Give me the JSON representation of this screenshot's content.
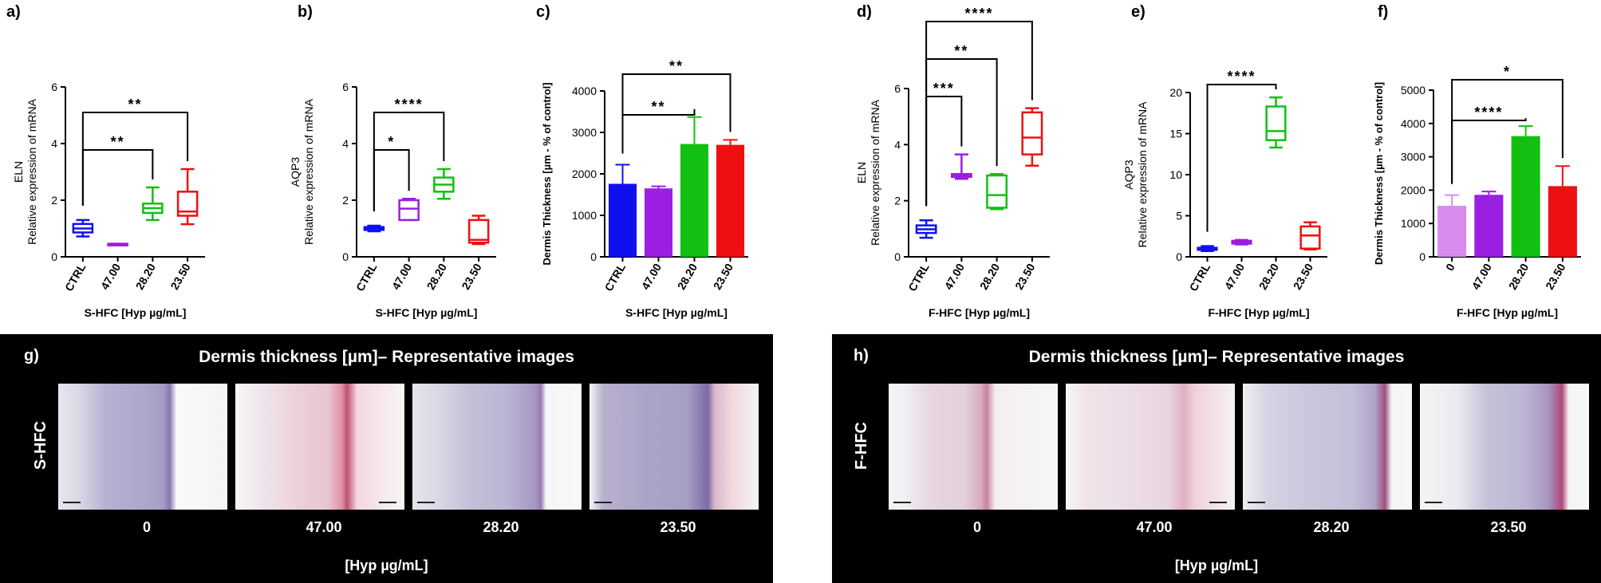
{
  "charts": [
    {
      "label": "a)",
      "type": "box",
      "ylabel_top": "ELN",
      "ylabel": "Relative expression of mRNA",
      "xlabel": "S-HFC [Hyp µg/mL]",
      "categories": [
        "CTRL",
        "47.00",
        "28.20",
        "23.50"
      ],
      "colors": [
        "#1010ee",
        "#9b1fe0",
        "#12c012",
        "#ee1010"
      ],
      "yticks": [
        "0",
        "2",
        "4",
        "6"
      ],
      "ylim": [
        0,
        6
      ],
      "boxes": [
        {
          "min": 0.72,
          "q1": 0.86,
          "med": 1.0,
          "q3": 1.16,
          "max": 1.3
        },
        {
          "min": 0.42,
          "q1": 0.42,
          "med": 0.44,
          "q3": 0.46,
          "max": 0.46
        },
        {
          "min": 1.3,
          "q1": 1.55,
          "med": 1.72,
          "q3": 1.88,
          "max": 2.45
        },
        {
          "min": 1.15,
          "q1": 1.45,
          "med": 1.6,
          "q3": 2.3,
          "max": 3.1
        }
      ],
      "sig": [
        {
          "from": 0,
          "to": 2,
          "level": 0,
          "stars": "**"
        },
        {
          "from": 0,
          "to": 3,
          "level": 1,
          "stars": "**"
        }
      ]
    },
    {
      "label": "b)",
      "type": "box",
      "ylabel_top": "AQP3",
      "ylabel": "Relative expression of mRNA",
      "xlabel": "S-HFC [Hyp µg/mL]",
      "categories": [
        "CTRL",
        "47.00",
        "28.20",
        "23.50"
      ],
      "colors": [
        "#1010ee",
        "#9b1fe0",
        "#12c012",
        "#ee1010"
      ],
      "yticks": [
        "0",
        "2",
        "4",
        "6"
      ],
      "ylim": [
        0,
        6
      ],
      "boxes": [
        {
          "min": 0.9,
          "q1": 0.95,
          "med": 1.0,
          "q3": 1.05,
          "max": 1.1
        },
        {
          "min": 1.3,
          "q1": 1.3,
          "med": 1.7,
          "q3": 2.0,
          "max": 2.05
        },
        {
          "min": 2.05,
          "q1": 2.3,
          "med": 2.55,
          "q3": 2.8,
          "max": 3.1
        },
        {
          "min": 0.45,
          "q1": 0.5,
          "med": 0.6,
          "q3": 1.3,
          "max": 1.45
        }
      ],
      "sig": [
        {
          "from": 0,
          "to": 1,
          "level": 0,
          "stars": "*"
        },
        {
          "from": 0,
          "to": 2,
          "level": 1,
          "stars": "****"
        }
      ]
    },
    {
      "label": "c)",
      "type": "bar",
      "ylabel": "Dermis Thickness [µm - % of control]",
      "xlabel": "S-HFC [Hyp µg/mL]",
      "categories": [
        "CTRL",
        "47.00",
        "28.20",
        "23.50"
      ],
      "colors": [
        "#1010ee",
        "#9b1fe0",
        "#12c012",
        "#ee1010"
      ],
      "yticks": [
        "0",
        "1000",
        "2000",
        "3000",
        "4000"
      ],
      "ylim": [
        0,
        4000
      ],
      "values": [
        1760,
        1650,
        2720,
        2700
      ],
      "errors": [
        460,
        50,
        650,
        120
      ],
      "sig": [
        {
          "from": 0,
          "to": 2,
          "level": 0,
          "stars": "**"
        },
        {
          "from": 0,
          "to": 3,
          "level": 1,
          "stars": "**"
        }
      ]
    },
    {
      "label": "d)",
      "type": "box",
      "ylabel_top": "ELN",
      "ylabel": "Relative expression of mRNA",
      "xlabel": "F-HFC [Hyp µg/mL]",
      "categories": [
        "CTRL",
        "47.00",
        "28.20",
        "23.50"
      ],
      "colors": [
        "#1010ee",
        "#9b1fe0",
        "#12c012",
        "#ee1010"
      ],
      "yticks": [
        "0",
        "2",
        "4",
        "6"
      ],
      "ylim": [
        0,
        6
      ],
      "boxes": [
        {
          "min": 0.68,
          "q1": 0.85,
          "med": 0.98,
          "q3": 1.12,
          "max": 1.3
        },
        {
          "min": 2.78,
          "q1": 2.85,
          "med": 2.9,
          "q3": 2.95,
          "max": 3.65
        },
        {
          "min": 1.7,
          "q1": 1.75,
          "med": 2.2,
          "q3": 2.9,
          "max": 2.95
        },
        {
          "min": 3.25,
          "q1": 3.65,
          "med": 4.25,
          "q3": 5.15,
          "max": 5.3
        }
      ],
      "sig": [
        {
          "from": 0,
          "to": 1,
          "level": 0,
          "stars": "***"
        },
        {
          "from": 0,
          "to": 2,
          "level": 1,
          "stars": "**"
        },
        {
          "from": 0,
          "to": 3,
          "level": 2,
          "stars": "****"
        }
      ]
    },
    {
      "label": "e)",
      "type": "box",
      "ylabel_top": "AQP3",
      "ylabel": "Relative expression of mRNA",
      "xlabel": "F-HFC [Hyp µg/mL]",
      "categories": [
        "CTRL",
        "47.00",
        "28.20",
        "23.50"
      ],
      "colors": [
        "#1010ee",
        "#9b1fe0",
        "#12c012",
        "#ee1010"
      ],
      "yticks": [
        "0",
        "5",
        "10",
        "15",
        "20"
      ],
      "ylim": [
        0,
        20
      ],
      "boxes": [
        {
          "min": 0.7,
          "q1": 0.85,
          "med": 1.0,
          "q3": 1.1,
          "max": 1.3
        },
        {
          "min": 1.5,
          "q1": 1.6,
          "med": 1.8,
          "q3": 1.95,
          "max": 2.05
        },
        {
          "min": 13.3,
          "q1": 14.2,
          "med": 15.3,
          "q3": 18.3,
          "max": 19.4
        },
        {
          "min": 0.9,
          "q1": 1.0,
          "med": 2.6,
          "q3": 3.7,
          "max": 4.2
        }
      ],
      "sig": [
        {
          "from": 0,
          "to": 2,
          "level": 0,
          "stars": "****"
        }
      ]
    },
    {
      "label": "f)",
      "type": "bar",
      "ylabel": "Dermis Thickness [µm - % of control]",
      "xlabel": "F-HFC [Hyp µg/mL]",
      "categories": [
        "0",
        "47.00",
        "28.20",
        "23.50"
      ],
      "colors": [
        "#d98cf0",
        "#9b1fe0",
        "#12c012",
        "#ee1010"
      ],
      "yticks": [
        "0",
        "1000",
        "2000",
        "3000",
        "4000",
        "5000"
      ],
      "ylim": [
        0,
        5000
      ],
      "values": [
        1530,
        1860,
        3620,
        2120
      ],
      "errors": [
        320,
        100,
        300,
        600
      ],
      "sig": [
        {
          "from": 0,
          "to": 2,
          "level": 0,
          "stars": "****"
        },
        {
          "from": 0,
          "to": 3,
          "level": 1,
          "stars": "*"
        }
      ]
    }
  ],
  "images": {
    "g": {
      "label": "g)",
      "title": "Dermis thickness [µm]– Representative images",
      "side": "S-HFC",
      "captions": [
        "0",
        "47.00",
        "28.20",
        "23.50"
      ],
      "unit": "[Hyp µg/mL]"
    },
    "h": {
      "label": "h)",
      "title": "Dermis thickness [µm]– Representative images",
      "side": "F-HFC",
      "captions": [
        "0",
        "47.00",
        "28.20",
        "23.50"
      ],
      "unit": "[Hyp µg/mL]"
    }
  }
}
